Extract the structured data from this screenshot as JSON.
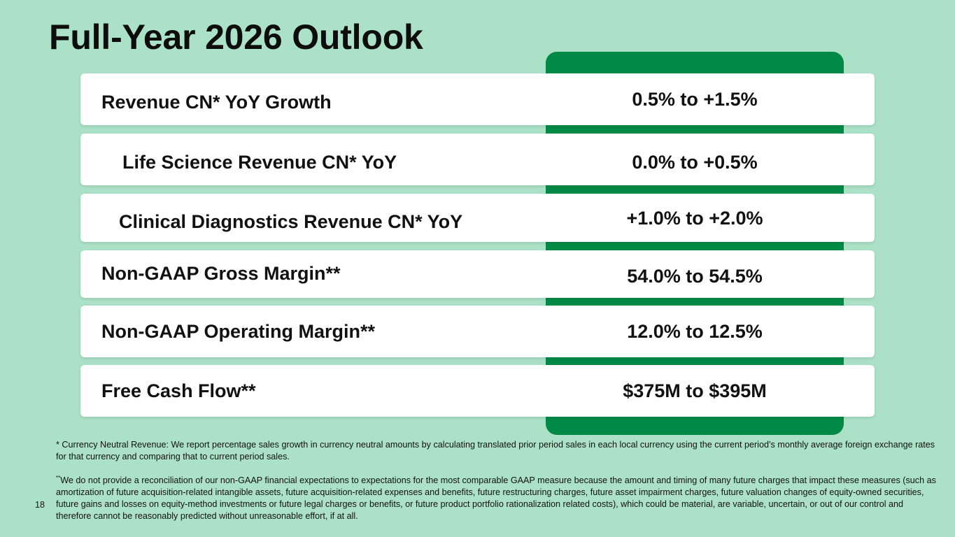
{
  "title": "Full-Year 2026 Outlook",
  "rows": [
    {
      "label": "Revenue CN* YoY Growth",
      "value": "0.5% to +1.5%"
    },
    {
      "label": "Life Science Revenue CN* YoY",
      "value": "0.0% to +0.5%"
    },
    {
      "label": "Clinical Diagnostics Revenue CN* YoY",
      "value": "+1.0% to +2.0%"
    },
    {
      "label": "Non-GAAP Gross Margin**",
      "value": "54.0% to 54.5%"
    },
    {
      "label": "Non-GAAP Operating Margin**",
      "value": "12.0% to 12.5%"
    },
    {
      "label": "Free Cash Flow**",
      "value": "$375M to $395M"
    }
  ],
  "footnotes": {
    "note1": "* Currency Neutral Revenue: We report percentage sales growth in currency neutral amounts by calculating translated prior period sales in each local currency using the current period’s monthly average foreign exchange rates for that currency and comparing that to current period sales.",
    "note2_marker": "**",
    "note2": "We do not provide a reconciliation of our non-GAAP financial expectations to expectations for the most comparable GAAP measure because the amount and timing of many future charges that impact these measures (such as amortization of future acquisition-related intangible assets, future acquisition-related expenses and benefits, future restructuring charges, future asset impairment charges, future valuation changes of equity-owned securities, future gains and losses on equity-method investments or future legal charges or benefits, or future product portfolio rationalization related costs), which could be material, are variable, uncertain, or out of our control and therefore cannot be reasonably predicted without unreasonable effort, if at all."
  },
  "page_number": "18",
  "colors": {
    "background": "#abe1c6",
    "accent_panel": "#008a45",
    "row_bg": "#ffffff"
  }
}
